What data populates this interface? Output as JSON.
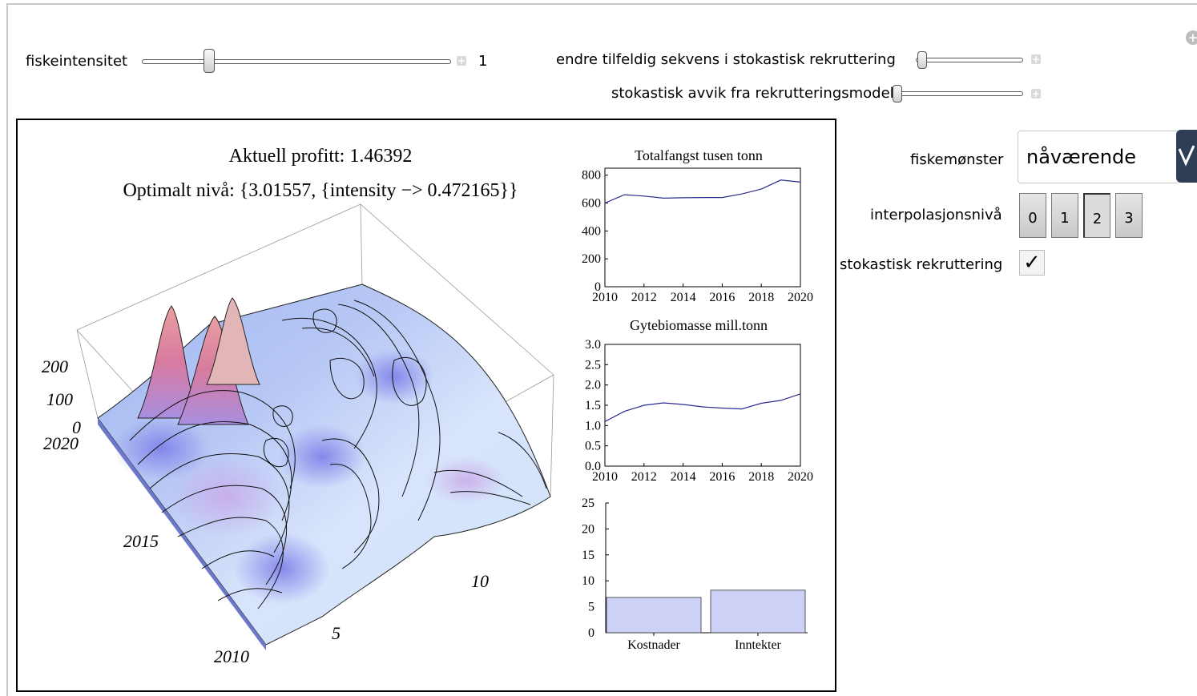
{
  "controls": {
    "intensity": {
      "label": "fiskeintensitet",
      "value": "1",
      "position": 0.22
    },
    "random_sequence": {
      "label": "endre tilfeldig sekvens i stokastisk rekruttering",
      "position": 0.06
    },
    "deviation": {
      "label": "stokastisk avvik fra rekrutteringsmodell",
      "position": 0.0
    },
    "pattern": {
      "label": "fiskemønster",
      "value": "nåværende"
    },
    "interpolation": {
      "label": "interpolasjonsnivå",
      "options": [
        "0",
        "1",
        "2",
        "3"
      ],
      "selected": "2"
    },
    "stochastic": {
      "label": "stokastisk rekruttering",
      "checked": "✓"
    }
  },
  "surface": {
    "title1": "Aktuell profitt: 1.46392",
    "title2": "Optimalt nivå: {3.01557, {intensity −> 0.472165}}",
    "z_ticks": [
      "200",
      "100",
      "0"
    ],
    "year_ticks": [
      "2020",
      "2015",
      "2010"
    ],
    "age_ticks": [
      "10",
      "5"
    ]
  },
  "chart_data": [
    {
      "type": "line",
      "title": "Totalfangst  tusen tonn",
      "x": [
        2010,
        2011,
        2012,
        2013,
        2014,
        2015,
        2016,
        2017,
        2018,
        2019,
        2020
      ],
      "series": [
        {
          "values": [
            600,
            660,
            650,
            635,
            638,
            640,
            640,
            665,
            700,
            765,
            750
          ]
        }
      ],
      "xlim": [
        2010,
        2020
      ],
      "ylim": [
        0,
        850
      ],
      "xticks": [
        "2010",
        "2012",
        "2014",
        "2016",
        "2018",
        "2020"
      ],
      "yticks": [
        "0",
        "200",
        "400",
        "600",
        "800"
      ]
    },
    {
      "type": "line",
      "title": "Gytebiomasse  mill.tonn",
      "x": [
        2010,
        2011,
        2012,
        2013,
        2014,
        2015,
        2016,
        2017,
        2018,
        2019,
        2020
      ],
      "series": [
        {
          "values": [
            1.1,
            1.35,
            1.5,
            1.56,
            1.52,
            1.46,
            1.43,
            1.41,
            1.55,
            1.62,
            1.78
          ]
        }
      ],
      "xlim": [
        2010,
        2020
      ],
      "ylim": [
        0,
        3.0
      ],
      "xticks": [
        "2010",
        "2012",
        "2014",
        "2016",
        "2018",
        "2020"
      ],
      "yticks": [
        "0.0",
        "0.5",
        "1.0",
        "1.5",
        "2.0",
        "2.5",
        "3.0"
      ]
    },
    {
      "type": "bar",
      "categories": [
        "Kostnader",
        "Inntekter"
      ],
      "values": [
        6.8,
        8.2
      ],
      "ylim": [
        0,
        25
      ],
      "yticks": [
        "0",
        "5",
        "10",
        "15",
        "20",
        "25"
      ],
      "color": "#ccd1f5"
    }
  ]
}
